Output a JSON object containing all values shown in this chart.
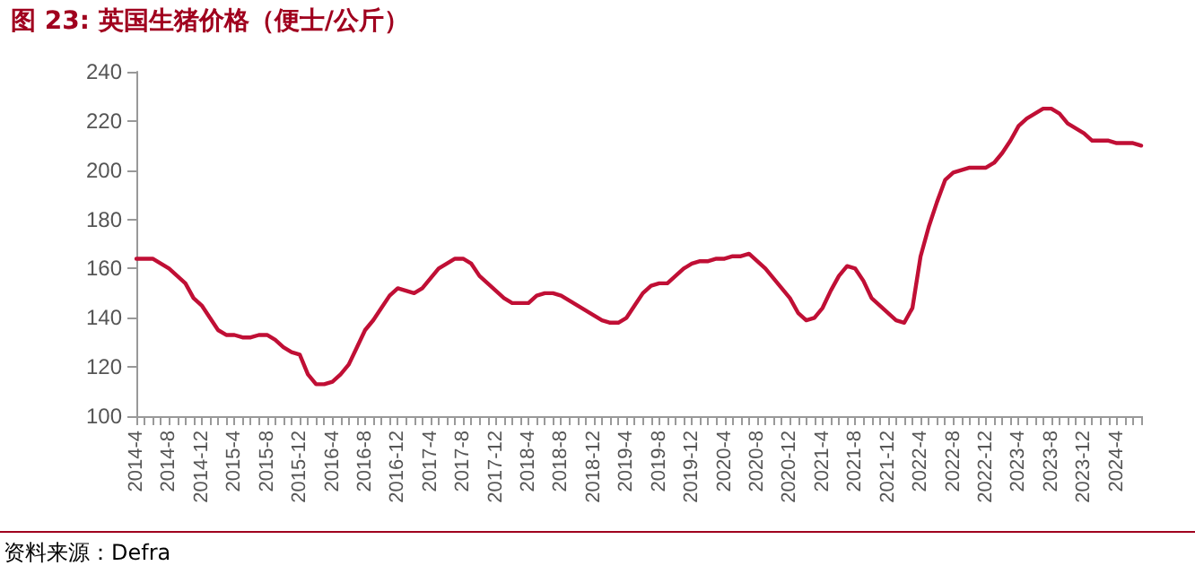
{
  "chart_data": {
    "type": "line",
    "title": "图 23:  英国生猪价格（便士/公斤）",
    "annotations": [
      "资料来源：Defra"
    ],
    "categories": [
      "2014-4",
      null,
      null,
      null,
      "2014-8",
      null,
      null,
      null,
      "2014-12",
      null,
      null,
      null,
      "2015-4",
      null,
      null,
      null,
      "2015-8",
      null,
      null,
      null,
      "2015-12",
      null,
      null,
      null,
      "2016-4",
      null,
      null,
      null,
      "2016-8",
      null,
      null,
      null,
      "2016-12",
      null,
      null,
      null,
      "2017-4",
      null,
      null,
      null,
      "2017-8",
      null,
      null,
      null,
      "2017-12",
      null,
      null,
      null,
      "2018-4",
      null,
      null,
      null,
      "2018-8",
      null,
      null,
      null,
      "2018-12",
      null,
      null,
      null,
      "2019-4",
      null,
      null,
      null,
      "2019-8",
      null,
      null,
      null,
      "2019-12",
      null,
      null,
      null,
      "2020-4",
      null,
      null,
      null,
      "2020-8",
      null,
      null,
      null,
      "2020-12",
      null,
      null,
      null,
      "2021-4",
      null,
      null,
      null,
      "2021-8",
      null,
      null,
      null,
      "2021-12",
      null,
      null,
      null,
      "2022-4",
      null,
      null,
      null,
      "2022-8",
      null,
      null,
      null,
      "2022-12",
      null,
      null,
      null,
      "2023-4",
      null,
      null,
      null,
      "2023-8",
      null,
      null,
      null,
      "2023-12",
      null,
      null,
      null,
      "2024-4",
      null,
      null,
      null
    ],
    "series": [
      {
        "color": "#c00f35",
        "values": [
          164,
          164,
          164,
          162,
          160,
          157,
          154,
          148,
          145,
          140,
          135,
          133,
          133,
          132,
          132,
          133,
          133,
          131,
          128,
          126,
          125,
          117,
          113,
          113,
          114,
          117,
          121,
          128,
          135,
          139,
          144,
          149,
          152,
          151,
          150,
          152,
          156,
          160,
          162,
          164,
          164,
          162,
          157,
          154,
          151,
          148,
          146,
          146,
          146,
          149,
          150,
          150,
          149,
          147,
          145,
          143,
          141,
          139,
          138,
          138,
          140,
          145,
          150,
          153,
          154,
          154,
          157,
          160,
          162,
          163,
          163,
          164,
          164,
          165,
          165,
          166,
          163,
          160,
          156,
          152,
          148,
          142,
          139,
          140,
          144,
          151,
          157,
          161,
          160,
          155,
          148,
          145,
          142,
          139,
          138,
          144,
          165,
          177,
          187,
          196,
          199,
          200,
          201,
          201,
          201,
          203,
          207,
          212,
          218,
          221,
          223,
          225,
          225,
          223,
          219,
          217,
          215,
          212,
          212,
          212,
          211,
          211,
          211,
          210
        ]
      }
    ],
    "ylim": [
      100,
      240
    ],
    "yticks": [
      100,
      120,
      140,
      160,
      180,
      200,
      220,
      240
    ],
    "grid": false,
    "marker": "none",
    "line_style": "solid"
  }
}
